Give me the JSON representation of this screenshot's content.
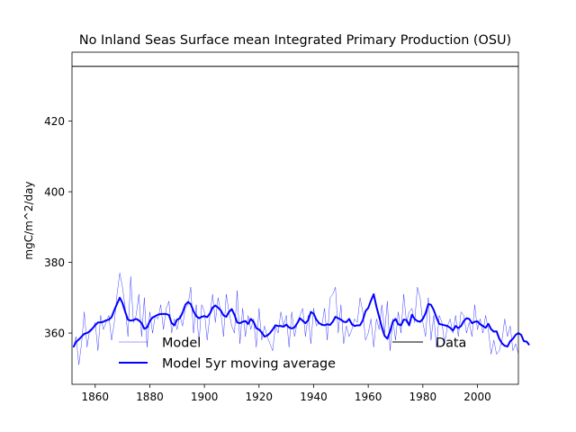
{
  "chart_data": {
    "type": "line",
    "title": "No Inland Seas Surface mean Integrated Primary Production (OSU)",
    "xlabel": "",
    "ylabel": "mgC/m^2/day",
    "xlim": [
      1851.5,
      2015
    ],
    "ylim": [
      345.5,
      439.5
    ],
    "x_ticks": [
      1860,
      1880,
      1900,
      1920,
      1940,
      1960,
      1980,
      2000
    ],
    "y_ticks": [
      360,
      380,
      400,
      420
    ],
    "grid": false,
    "legend_left": {
      "placement": "lower-left",
      "entries": [
        "Model",
        "Model 5yr moving average"
      ]
    },
    "legend_right": {
      "placement": "lower-right",
      "entries": [
        "Data"
      ]
    },
    "colors": {
      "model": "#0000ff",
      "moving_average": "#0000ff",
      "data": "#000000"
    },
    "series": [
      {
        "name": "Model",
        "style": "thin",
        "x_start": 1852,
        "x_step": 1,
        "values": [
          356,
          359,
          351,
          357,
          366,
          356,
          361,
          361,
          363,
          355,
          365,
          361,
          363,
          365,
          358,
          363,
          371,
          377,
          373,
          367,
          359,
          376,
          363,
          365,
          371,
          359,
          370,
          356,
          366,
          360,
          365,
          364,
          368,
          361,
          367,
          369,
          360,
          364,
          361,
          365,
          362,
          367,
          368,
          373,
          360,
          368,
          357,
          368,
          366,
          358,
          365,
          371,
          363,
          370,
          366,
          359,
          371,
          366,
          362,
          360,
          372,
          357,
          367,
          359,
          365,
          361,
          364,
          356,
          367,
          358,
          362,
          359,
          357,
          355,
          362,
          360,
          366,
          362,
          365,
          356,
          366,
          359,
          363,
          365,
          367,
          359,
          365,
          357,
          367,
          362,
          363,
          362,
          367,
          358,
          370,
          371,
          373,
          360,
          368,
          357,
          362,
          359,
          361,
          364,
          363,
          370,
          366,
          358,
          360,
          364,
          356,
          364,
          361,
          368,
          360,
          369,
          355,
          364,
          358,
          366,
          360,
          371,
          363,
          366,
          367,
          363,
          373,
          370,
          363,
          359,
          370,
          358,
          365,
          356,
          365,
          363,
          357,
          362,
          364,
          360,
          365,
          359,
          366,
          365,
          360,
          363,
          359,
          368,
          361,
          364,
          360,
          365,
          361,
          354,
          358,
          354,
          355,
          358,
          364,
          359,
          362,
          355,
          357,
          354
        ]
      },
      {
        "name": "Model 5yr moving average",
        "style": "thick",
        "x_start": 1852,
        "x_step": 1,
        "values": [
          356,
          357.5,
          358.2,
          359,
          359.8,
          360,
          360.5,
          361.3,
          362.2,
          363,
          363,
          363.2,
          363.6,
          363.8,
          364.5,
          366.5,
          368.3,
          370,
          368.5,
          366,
          363.8,
          363.5,
          363.7,
          364,
          363.6,
          362.8,
          361.2,
          361.6,
          363.4,
          364.4,
          364.8,
          365.2,
          365.4,
          365.4,
          365.4,
          365.1,
          362.8,
          362.2,
          363.8,
          364.2,
          365.8,
          368,
          368.8,
          368.2,
          366.2,
          364.8,
          364.2,
          364.6,
          364.8,
          364.5,
          365.5,
          367.2,
          367.8,
          367.2,
          366.4,
          365,
          364.6,
          366,
          366.8,
          365.2,
          363,
          362.8,
          363.2,
          363.4,
          362.6,
          364,
          363.2,
          361.4,
          361,
          360.2,
          359,
          359.3,
          360,
          361,
          362.2,
          362,
          362,
          361.8,
          362.4,
          361.6,
          361.3,
          361.6,
          362.8,
          364.2,
          363.5,
          362.8,
          363.6,
          366,
          365.5,
          363.8,
          362.8,
          362.4,
          362.2,
          362.5,
          362.3,
          363.2,
          364.6,
          364.2,
          363.8,
          363.2,
          363.1,
          364,
          362.5,
          362,
          362.2,
          362.2,
          363.6,
          366.2,
          367.1,
          369.2,
          371,
          367.5,
          364.6,
          361.6,
          359.2,
          358.4,
          360.5,
          363.2,
          364,
          362.5,
          362.2,
          363.8,
          363.7,
          362.2,
          365.2,
          364,
          363.4,
          363.2,
          364,
          365.6,
          368.2,
          368,
          366.5,
          364.4,
          362.6,
          362.4,
          362.2,
          362,
          361.5,
          360.7,
          362,
          361.4,
          362,
          363.4,
          364.2,
          364,
          362.8,
          363.2,
          363.3,
          362.5,
          362,
          361.5,
          362.6,
          361.1,
          360.4,
          360.5,
          358.4,
          357.1,
          356.4,
          356.2,
          357.7,
          358.4,
          359.5,
          360,
          359.5,
          357.7,
          357.6,
          356.6
        ]
      },
      {
        "name": "Data",
        "style": "reference",
        "x": [
          1851.5,
          2015
        ],
        "values": [
          435.5,
          435.5
        ]
      }
    ]
  }
}
